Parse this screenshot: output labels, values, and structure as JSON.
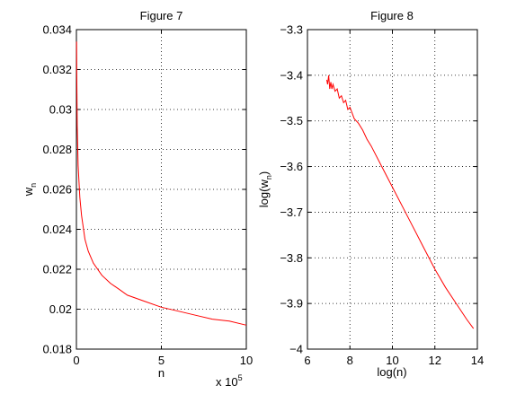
{
  "chart_data": [
    {
      "type": "line",
      "title": "Figure 7",
      "xlabel": "n",
      "ylabel": "w",
      "ylabel_sub": "n",
      "x_scale_note": "x 10",
      "x_scale_exp": "5",
      "xlim": [
        0,
        10
      ],
      "ylim": [
        0.018,
        0.034
      ],
      "xticks": [
        0,
        5,
        10
      ],
      "xtick_labels": [
        "0",
        "5",
        "10"
      ],
      "yticks": [
        0.018,
        0.02,
        0.022,
        0.024,
        0.026,
        0.028,
        0.03,
        0.032,
        0.034
      ],
      "ytick_labels": [
        "0.018",
        "0.02",
        "0.022",
        "0.024",
        "0.026",
        "0.028",
        "0.03",
        "0.032",
        "0.034"
      ],
      "grid": true,
      "color": "#ff0000",
      "series": [
        {
          "x": [
            0.01,
            0.02,
            0.05,
            0.1,
            0.2,
            0.3,
            0.5,
            0.7,
            1.0,
            1.5,
            2.0,
            2.5,
            3.0,
            4.0,
            5.0,
            6.0,
            7.0,
            8.0,
            9.0,
            10.0
          ],
          "values": [
            0.0334,
            0.0318,
            0.0292,
            0.0272,
            0.0256,
            0.0247,
            0.0235,
            0.0229,
            0.0223,
            0.0217,
            0.0213,
            0.021,
            0.0207,
            0.0204,
            0.0201,
            0.0199,
            0.0197,
            0.0195,
            0.0194,
            0.0192
          ]
        }
      ]
    },
    {
      "type": "line",
      "title": "Figure 8",
      "xlabel": "log(n)",
      "ylabel": "log(w",
      "ylabel_sub": "n",
      "ylabel_end": ")",
      "xlim": [
        6,
        14
      ],
      "ylim": [
        -4,
        -3.3
      ],
      "xticks": [
        6,
        8,
        10,
        12,
        14
      ],
      "xtick_labels": [
        "6",
        "8",
        "10",
        "12",
        "14"
      ],
      "yticks": [
        -4,
        -3.9,
        -3.8,
        -3.7,
        -3.6,
        -3.5,
        -3.4,
        -3.3
      ],
      "ytick_labels": [
        "−4",
        "−3.9",
        "−3.8",
        "−3.7",
        "−3.6",
        "−3.5",
        "−3.4",
        "−3.3"
      ],
      "grid": true,
      "color": "#ff0000",
      "series": [
        {
          "x": [
            6.91,
            6.95,
            7.0,
            7.05,
            7.1,
            7.15,
            7.2,
            7.3,
            7.4,
            7.5,
            7.6,
            7.7,
            7.8,
            7.9,
            8.0,
            8.2,
            8.4,
            8.6,
            8.8,
            9.0,
            9.5,
            10.0,
            10.5,
            11.0,
            11.5,
            12.0,
            12.5,
            13.0,
            13.5,
            13.82
          ],
          "values": [
            -3.41,
            -3.42,
            -3.4,
            -3.43,
            -3.415,
            -3.43,
            -3.42,
            -3.435,
            -3.43,
            -3.45,
            -3.445,
            -3.46,
            -3.455,
            -3.475,
            -3.47,
            -3.495,
            -3.505,
            -3.52,
            -3.54,
            -3.555,
            -3.6,
            -3.645,
            -3.69,
            -3.735,
            -3.78,
            -3.825,
            -3.865,
            -3.9,
            -3.935,
            -3.955
          ]
        }
      ]
    }
  ]
}
